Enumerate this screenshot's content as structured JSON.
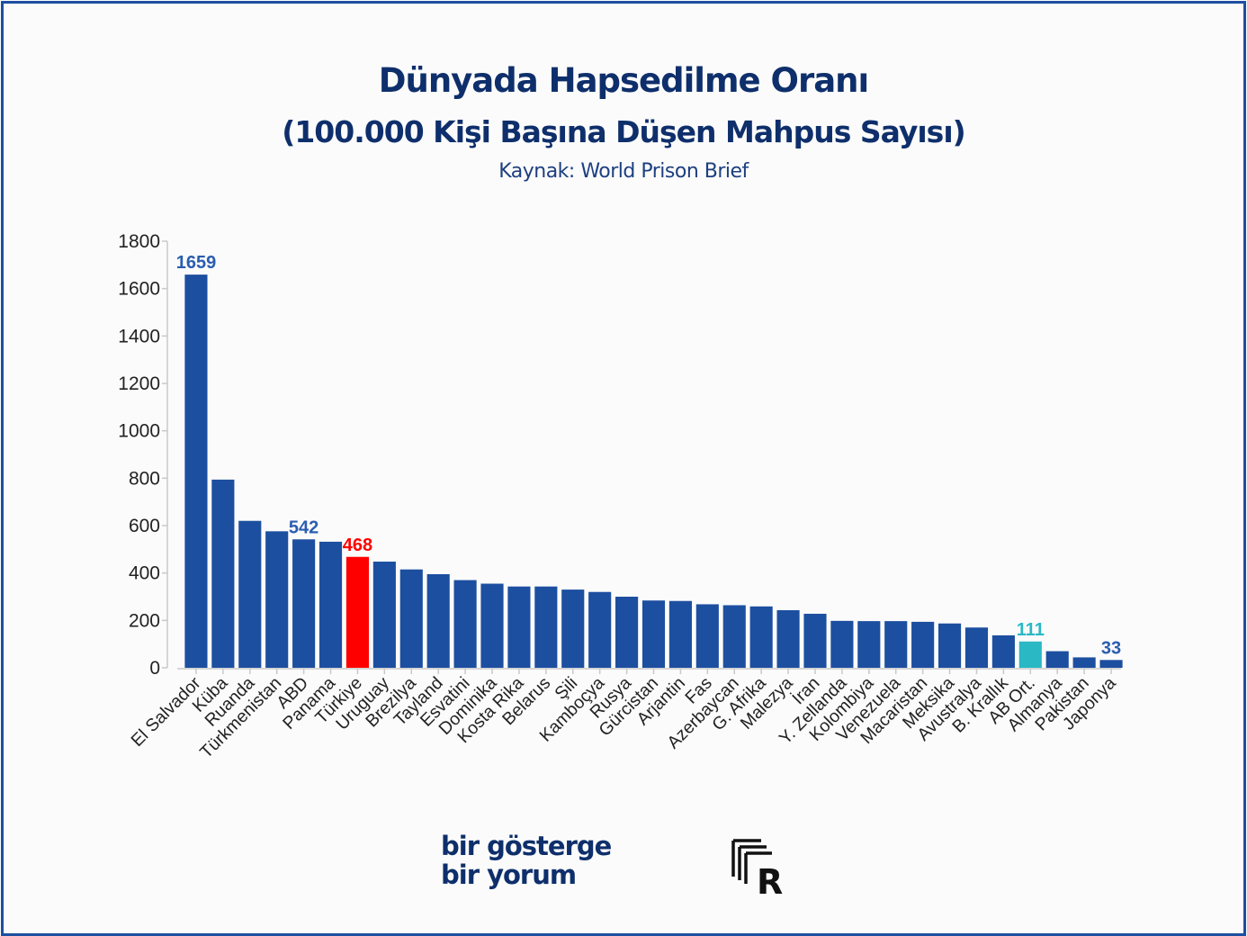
{
  "header": {
    "title": "Dünyada Hapsedilme Oranı",
    "subtitle": "(100.000 Kişi Başına Düşen Mahpus Sayısı)",
    "source": "Kaynak: World Prison Brief"
  },
  "branding": {
    "line1": "bir gösterge",
    "line2": "bir yorum",
    "logo_letter": "R"
  },
  "colors": {
    "default_bar": "#1d4fa0",
    "turkiye_bar": "#ff0000",
    "ab_bar": "#2ab8c4",
    "label_blue": "#2a5db0",
    "label_red": "#ff0000",
    "label_teal": "#2ab8c4",
    "title": "#0e2f6b"
  },
  "chart_data": {
    "type": "bar",
    "title": "Dünyada Hapsedilme Oranı",
    "xlabel": "",
    "ylabel": "",
    "ylim": [
      0,
      1800
    ],
    "yticks": [
      0,
      200,
      400,
      600,
      800,
      1000,
      1200,
      1400,
      1600,
      1800
    ],
    "grid": false,
    "categories": [
      "El Salvador",
      "Küba",
      "Ruanda",
      "Türkmenistan",
      "ABD",
      "Panama",
      "Türkiye",
      "Uruguay",
      "Brezilya",
      "Tayland",
      "Esvatini",
      "Dominika",
      "Kosta Rika",
      "Belarus",
      "Şili",
      "Kamboçya",
      "Rusya",
      "Gürcistan",
      "Arjantin",
      "Fas",
      "Azerbaycan",
      "G. Afrika",
      "Malezya",
      "İran",
      "Y. Zellanda",
      "Kolombiya",
      "Venezuela",
      "Macaristan",
      "Meksika",
      "Avustralya",
      "B. Krallık",
      "AB Ort.",
      "Almanya",
      "Pakistan",
      "Japonya"
    ],
    "values": [
      1659,
      794,
      620,
      576,
      542,
      532,
      468,
      448,
      415,
      395,
      370,
      355,
      343,
      343,
      330,
      320,
      300,
      284,
      282,
      268,
      264,
      259,
      243,
      228,
      198,
      197,
      197,
      194,
      187,
      170,
      137,
      111,
      70,
      44,
      33
    ],
    "highlights": {
      "Türkiye": "#ff0000",
      "AB Ort.": "#2ab8c4"
    },
    "data_labels": [
      {
        "category": "El Salvador",
        "text": "1659",
        "color": "#2a5db0"
      },
      {
        "category": "ABD",
        "text": "542",
        "color": "#2a5db0"
      },
      {
        "category": "Türkiye",
        "text": "468",
        "color": "#ff0000"
      },
      {
        "category": "AB Ort.",
        "text": "111",
        "color": "#2ab8c4"
      },
      {
        "category": "Japonya",
        "text": "33",
        "color": "#2a5db0"
      }
    ]
  }
}
